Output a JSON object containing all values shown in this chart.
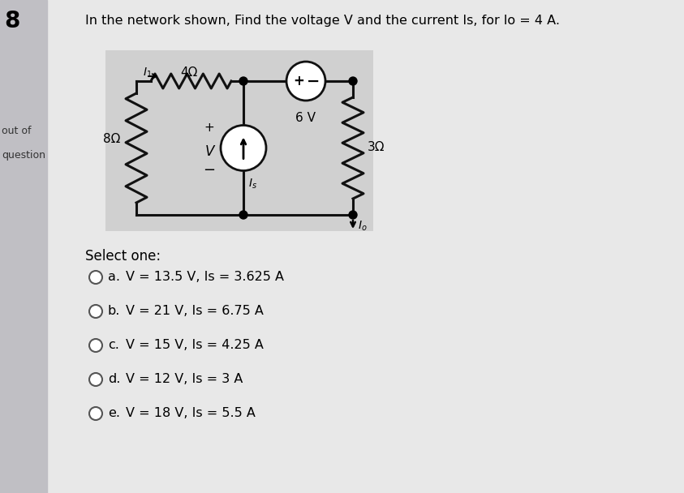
{
  "question_number": "8",
  "out_of_text": "out of",
  "question_label": "question",
  "title": "In the network shown, Find the voltage V and the current Is, for lo = 4 A.",
  "select_one": "Select one:",
  "options": [
    {
      "label": "a.",
      "text": "V = 13.5 V, Is = 3.625 A"
    },
    {
      "label": "b.",
      "text": "V = 21 V, Is = 6.75 A"
    },
    {
      "label": "c.",
      "text": "V = 15 V, Is = 4.25 A"
    },
    {
      "label": "d.",
      "text": "V = 12 V, Is = 3 A"
    },
    {
      "label": "e.",
      "text": "V = 18 V, Is = 5.5 A"
    }
  ],
  "bg_color": "#e8e8e8",
  "circuit_bg": "#d8d8d8",
  "left_panel_color": "#c0bfc4",
  "wire_color": "#111111",
  "text_color": "#222222"
}
